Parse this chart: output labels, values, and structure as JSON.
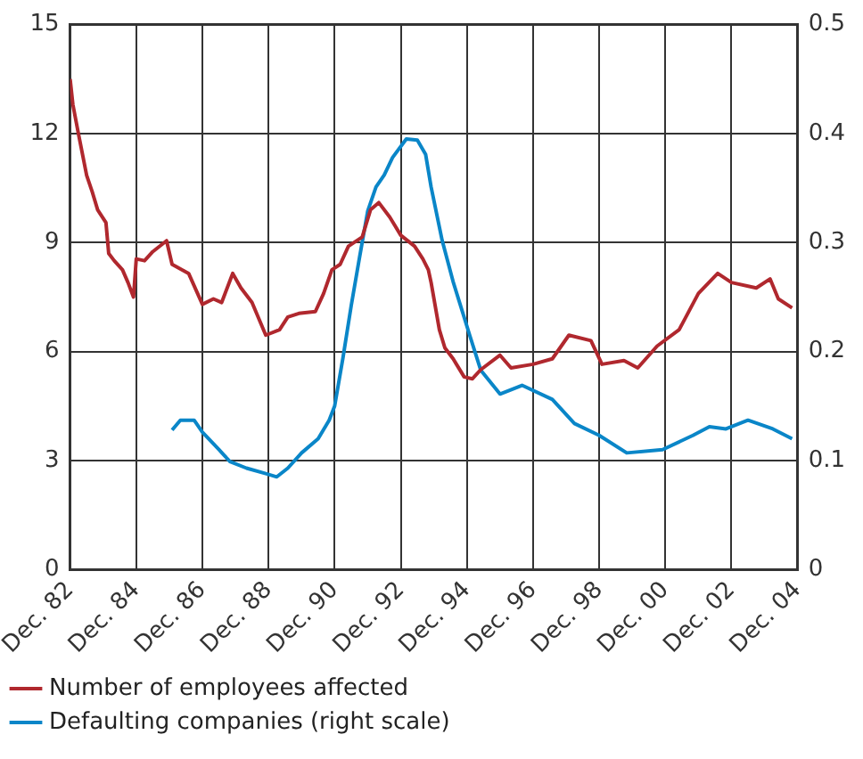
{
  "chart_data": {
    "type": "line",
    "legend": "bottom",
    "grid": true,
    "marker": "none",
    "line_style": "solid",
    "xlim": [
      "1982-12",
      "2004-12"
    ],
    "xticks": [
      {
        "value": "1982-12",
        "label": "Dec. 82"
      },
      {
        "value": "1984-12",
        "label": "Dec. 84"
      },
      {
        "value": "1986-12",
        "label": "Dec. 86"
      },
      {
        "value": "1988-12",
        "label": "Dec. 88"
      },
      {
        "value": "1990-12",
        "label": "Dec. 90"
      },
      {
        "value": "1992-12",
        "label": "Dec. 92"
      },
      {
        "value": "1994-12",
        "label": "Dec. 94"
      },
      {
        "value": "1996-12",
        "label": "Dec. 96"
      },
      {
        "value": "1998-12",
        "label": "Dec. 98"
      },
      {
        "value": "2000-12",
        "label": "Dec. 00"
      },
      {
        "value": "2002-12",
        "label": "Dec. 02"
      },
      {
        "value": "2004-12",
        "label": "Dec. 04"
      }
    ],
    "ylim": [
      0,
      15
    ],
    "yticks": [
      0,
      3,
      6,
      9,
      12,
      15
    ],
    "y2lim": [
      0,
      0.5
    ],
    "y2ticks": [
      0,
      0.1,
      0.2,
      0.3,
      0.4,
      0.5
    ],
    "series": [
      {
        "name": "Number of employees affected",
        "color": "#b0282e",
        "x": [
          "1982-12",
          "1983-01",
          "1983-03",
          "1983-06",
          "1983-08",
          "1983-10",
          "1984-01",
          "1984-02",
          "1984-04",
          "1984-07",
          "1984-09",
          "1984-11",
          "1984-12",
          "1985-03",
          "1985-06",
          "1985-11",
          "1986-01",
          "1986-07",
          "1986-12",
          "1987-04",
          "1987-07",
          "1987-11",
          "1988-02",
          "1988-06",
          "1988-11",
          "1989-04",
          "1989-07",
          "1989-11",
          "1990-05",
          "1990-08",
          "1990-11",
          "1991-02",
          "1991-05",
          "1991-10",
          "1992-01",
          "1992-04",
          "1992-08",
          "1992-12",
          "1993-05",
          "1993-08",
          "1993-10",
          "1993-11",
          "1994-02",
          "1994-04",
          "1994-07",
          "1994-11",
          "1995-02",
          "1995-05",
          "1995-12",
          "1996-04",
          "1996-12",
          "1997-07",
          "1998-01",
          "1998-09",
          "1999-01",
          "1999-09",
          "2000-02",
          "2000-09",
          "2001-05",
          "2001-12",
          "2002-07",
          "2002-12",
          "2003-09",
          "2004-02",
          "2004-05",
          "2004-10"
        ],
        "values": [
          13.5,
          12.8,
          12.0,
          10.85,
          10.4,
          9.9,
          9.55,
          8.7,
          8.5,
          8.25,
          7.9,
          7.5,
          8.55,
          8.5,
          8.75,
          9.05,
          8.4,
          8.15,
          7.3,
          7.45,
          7.35,
          8.15,
          7.75,
          7.35,
          6.45,
          6.6,
          6.95,
          7.05,
          7.1,
          7.6,
          8.25,
          8.4,
          8.9,
          9.15,
          9.9,
          10.1,
          9.7,
          9.2,
          8.9,
          8.55,
          8.25,
          7.9,
          6.6,
          6.1,
          5.8,
          5.3,
          5.25,
          5.5,
          5.9,
          5.55,
          5.65,
          5.8,
          6.45,
          6.3,
          5.65,
          5.75,
          5.55,
          6.15,
          6.6,
          7.6,
          8.15,
          7.9,
          7.75,
          8.0,
          7.45,
          7.2
        ]
      },
      {
        "name": "Defaulting companies (right scale)",
        "color": "#0a86c8",
        "axis": "y2",
        "x": [
          "1986-01",
          "1986-04",
          "1986-09",
          "1986-12",
          "1987-06",
          "1987-10",
          "1988-04",
          "1988-11",
          "1989-03",
          "1989-07",
          "1989-12",
          "1990-06",
          "1990-10",
          "1990-12",
          "1991-03",
          "1991-06",
          "1991-09",
          "1991-12",
          "1992-03",
          "1992-06",
          "1992-09",
          "1993-02",
          "1993-06",
          "1993-09",
          "1993-11",
          "1994-03",
          "1994-07",
          "1995-01",
          "1995-05",
          "1995-12",
          "1996-08",
          "1997-07",
          "1998-03",
          "1998-12",
          "1999-10",
          "2000-11",
          "2001-10",
          "2002-04",
          "2002-10",
          "2003-06",
          "2004-03",
          "2004-10"
        ],
        "values": [
          0.128,
          0.137,
          0.137,
          0.126,
          0.11,
          0.099,
          0.093,
          0.088,
          0.085,
          0.093,
          0.107,
          0.12,
          0.137,
          0.15,
          0.194,
          0.242,
          0.286,
          0.329,
          0.351,
          0.362,
          0.378,
          0.395,
          0.394,
          0.381,
          0.351,
          0.302,
          0.264,
          0.215,
          0.183,
          0.161,
          0.169,
          0.156,
          0.134,
          0.123,
          0.107,
          0.11,
          0.123,
          0.131,
          0.129,
          0.137,
          0.129,
          0.12
        ]
      }
    ]
  }
}
